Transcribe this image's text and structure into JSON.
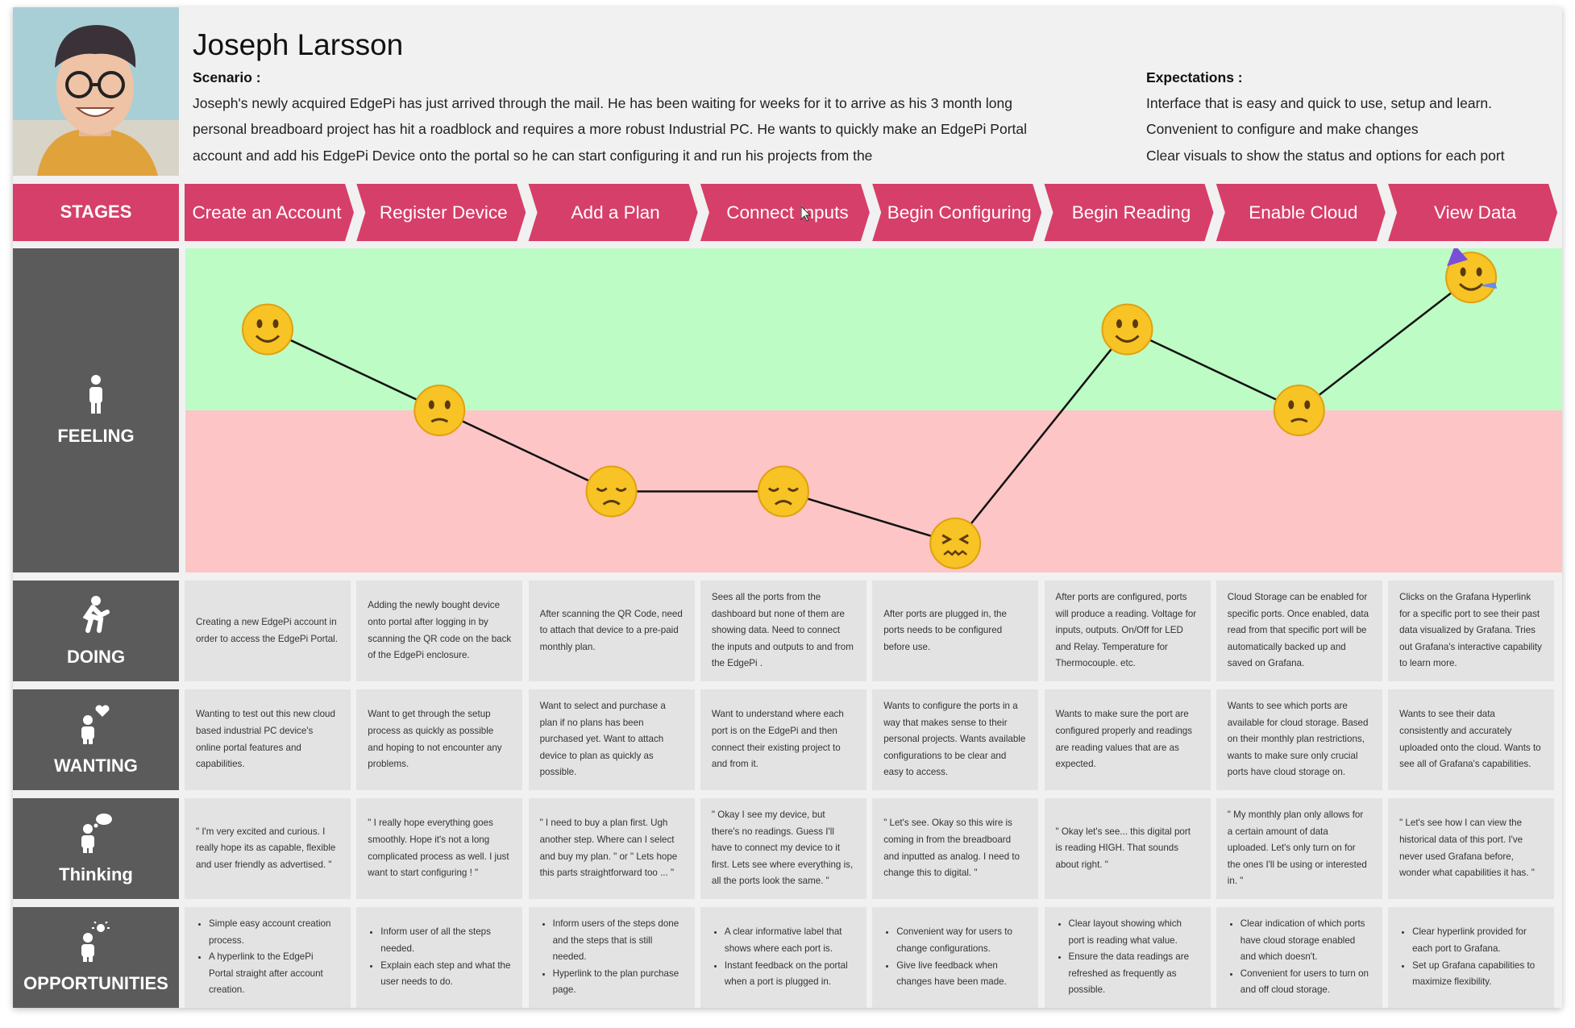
{
  "persona": {
    "name": "Joseph Larsson",
    "scenario_label": "Scenario :",
    "scenario": "Joseph's newly acquired EdgePi has just arrived through the mail. He has been waiting for weeks for it to arrive as his 3 month long personal breadboard project has hit a roadblock and requires a more robust Industrial PC. He wants to quickly make an EdgePi Portal account and add his EdgePi Device onto the portal so he can start configuring it and run his projects from the",
    "expectations_label": "Expectations :",
    "expectations": [
      "Interface that is easy and quick  to use, setup and learn.",
      "Convenient to configure and make changes",
      "Clear visuals to show the status and options for each port"
    ]
  },
  "stages": {
    "label": "STAGES",
    "items": [
      "Create an Account",
      "Register Device",
      "Add a Plan",
      "Connect Inputs",
      "Begin Configuring",
      "Begin Reading",
      "Enable Cloud",
      "View Data"
    ]
  },
  "feeling": {
    "label": "FEELING",
    "levels": [
      75,
      50,
      25,
      25,
      9,
      75,
      50,
      91
    ]
  },
  "rows": [
    {
      "label": "DOING",
      "cells": [
        "Creating a new EdgePi account in order to access the EdgePi Portal.",
        "Adding the newly bought device onto portal after logging in by scanning the QR code on the back of the EdgePi enclosure.",
        "After scanning the QR Code, need to attach that device to a pre-paid monthly plan.",
        "Sees all the ports from the dashboard but none of them are showing data. Need to connect the inputs and outputs to and from the EdgePi .",
        "After ports are plugged in, the ports needs to be configured before use.",
        "After ports are configured, ports will produce a reading. Voltage for inputs, outputs. On/Off for LED and Relay. Temperature for Thermocouple. etc.",
        "Cloud Storage can be enabled for specific ports. Once enabled, data read from that specific port will be automatically backed up and saved on Grafana.",
        "Clicks on the Grafana Hyperlink for a specific port to see their past data visualized by Grafana. Tries out Grafana's interactive capability to learn more."
      ]
    },
    {
      "label": "WANTING",
      "cells": [
        "Wanting to test out this new cloud based industrial PC device's online portal features and capabilities.",
        "Want to get through the setup process as quickly as possible and hoping to not encounter any problems.",
        "Want to select and purchase a plan if no plans has been purchased yet. Want to attach device to plan as quickly as possible.",
        "Want to understand where each port is on the EdgePi and then connect their existing project to and from it.",
        "Wants to configure the ports in a way that makes sense to their personal projects. Wants available configurations to be clear and easy to access.",
        "Wants to make sure the port are configured properly and readings are reading values that are as expected.",
        "Wants to see which ports are available for cloud storage. Based on their monthly plan restrictions, wants to make sure only crucial ports have cloud storage on.",
        "Wants to see their data consistently and accurately uploaded onto the cloud. Wants to see all of Grafana's capabilities."
      ]
    },
    {
      "label": "Thinking",
      "cells": [
        "\" I'm very excited and curious. I really hope its as capable, flexible and user friendly as advertised.  \"",
        "\" I really hope everything goes smoothly. Hope it's not a long complicated process as well. I just want to start configuring ! \"",
        "\" I need to buy a plan first. Ugh another step. Where can I select and buy my plan.  \" or \" Lets hope this parts straightforward too ... \"",
        "\" Okay I see my device, but there's no readings. Guess I'll have to connect my device to it first. Lets see where everything is, all the ports look the same. \"",
        "\" Let's see. Okay so this wire is coming in from the breadboard and inputted as analog. I need to change this to digital. \"",
        "\" Okay let's see... this digital port is reading HIGH. That sounds about right.  \"",
        "\" My monthly plan only allows for a certain amount of data uploaded. Let's only turn on for the ones I'll be using or interested in. \"",
        "\" Let's see how I can view the historical data of this port. I've never used Grafana before, wonder what capabilities it has. \""
      ]
    },
    {
      "label": "OPPORTUNITIES",
      "cells": [
        [
          "Simple easy account creation process.",
          "A hyperlink to the EdgePi Portal straight after account creation."
        ],
        [
          "Inform user of all the steps needed.",
          "Explain each step and what the user needs to do."
        ],
        [
          "Inform users of the steps done and the steps that is still needed.",
          "Hyperlink to the plan purchase page."
        ],
        [
          "A clear informative label that shows where each port is.",
          "Instant feedback on the portal when a port is plugged in."
        ],
        [
          "Convenient way for users to change configurations.",
          "Give live feedback when changes have been made."
        ],
        [
          "Clear layout showing which port is reading what value.",
          "Ensure the data readings are refreshed as frequently as possible."
        ],
        [
          "Clear indication of which ports have cloud storage enabled and which doesn't.",
          "Convenient for users to turn on and off cloud storage."
        ],
        [
          "Clear hyperlink provided for each port to Grafana.",
          "Set up Grafana capabilities to maximize flexibility."
        ]
      ]
    }
  ]
}
